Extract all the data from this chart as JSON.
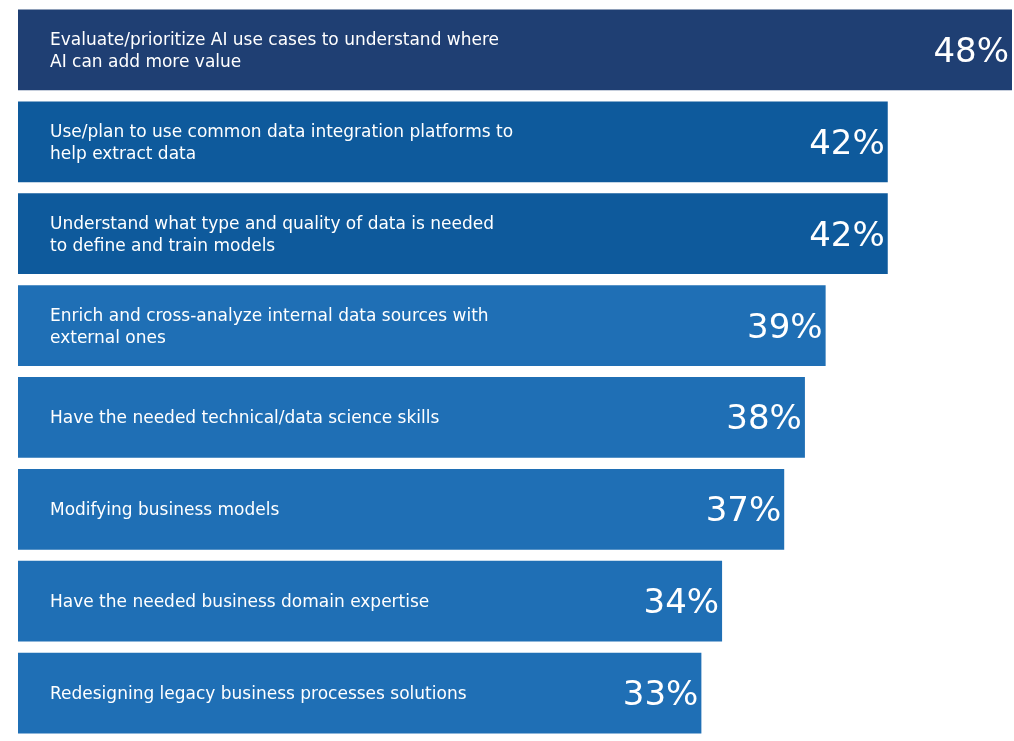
{
  "chart_data": {
    "type": "bar",
    "orientation": "horizontal",
    "categories": [
      "Evaluate/prioritize AI use cases to understand where AI can add more value",
      "Use/plan to use common data integration platforms to help extract data",
      "Understand what type and quality of data is needed to define and train models",
      "Enrich and cross-analyze internal data sources with external ones",
      "Have the needed technical/data science skills",
      "Modifying business models",
      "Have the needed business domain expertise",
      "Redesigning legacy business processes solutions"
    ],
    "values": [
      48,
      42,
      42,
      39,
      38,
      37,
      34,
      33
    ],
    "value_labels": [
      "48%",
      "42%",
      "42%",
      "39%",
      "38%",
      "37%",
      "34%",
      "33%"
    ],
    "colors": [
      "#1f3f73",
      "#0e5a9c",
      "#0e5a9c",
      "#1f6fb5",
      "#1f6fb5",
      "#1f6fb5",
      "#1f6fb5",
      "#1f6fb5"
    ],
    "legend": false
  }
}
